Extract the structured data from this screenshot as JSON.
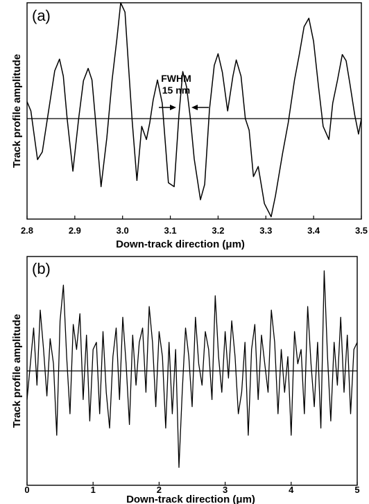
{
  "chart_data": [
    {
      "type": "line",
      "panel_label": "(a)",
      "xlabel": "Down-track direction (μm)",
      "ylabel": "Track profile amplitude",
      "xlim": [
        2.8,
        3.5
      ],
      "ylim": [
        -1.3,
        1.5
      ],
      "x_ticks": [
        "2.8",
        "2.9",
        "3.0",
        "3.1",
        "3.2",
        "3.3",
        "3.4",
        "3.5"
      ],
      "baseline": 0,
      "annotations": [
        {
          "text": "FWHM",
          "x": 3.125,
          "y": 0.0
        },
        {
          "text": "15 nm",
          "x": 3.125,
          "y": 0.0
        }
      ],
      "series": [
        {
          "x": [
            2.8,
            2.808,
            2.822,
            2.832,
            2.847,
            2.858,
            2.868,
            2.876,
            2.884,
            2.896,
            2.908,
            2.918,
            2.928,
            2.936,
            2.943,
            2.955,
            2.967,
            2.978,
            2.988,
            2.996,
            3.005,
            3.012,
            3.02,
            3.03,
            3.04,
            3.05,
            3.057,
            3.064,
            3.073,
            3.083,
            3.096,
            3.108,
            3.118,
            3.126,
            3.134,
            3.142,
            3.15,
            3.163,
            3.172,
            3.182,
            3.192,
            3.2,
            3.209,
            3.22,
            3.231,
            3.238,
            3.248,
            3.257,
            3.265,
            3.274,
            3.284,
            3.297,
            3.311,
            3.32,
            3.335,
            3.347,
            3.36,
            3.37,
            3.38,
            3.39,
            3.4,
            3.41,
            3.42,
            3.432,
            3.44,
            3.45,
            3.46,
            3.468,
            3.476,
            3.486,
            3.494,
            3.5
          ],
          "y": [
            0.22,
            0.1,
            -0.53,
            -0.43,
            0.18,
            0.62,
            0.77,
            0.55,
            0.0,
            -0.68,
            0.0,
            0.49,
            0.65,
            0.5,
            0.0,
            -0.88,
            -0.25,
            0.5,
            1.03,
            1.5,
            1.38,
            0.72,
            -0.02,
            -0.8,
            -0.1,
            -0.27,
            -0.05,
            0.24,
            0.5,
            0.2,
            -0.83,
            -0.88,
            0.05,
            0.61,
            0.41,
            0.0,
            -0.52,
            -1.05,
            -0.85,
            0.12,
            0.69,
            0.84,
            0.6,
            0.1,
            0.55,
            0.76,
            0.55,
            0.0,
            -0.15,
            -0.75,
            -0.62,
            -1.1,
            -1.27,
            -1.0,
            -0.45,
            -0.05,
            0.5,
            0.83,
            1.19,
            1.3,
            1.0,
            0.43,
            -0.1,
            -0.27,
            0.2,
            0.5,
            0.83,
            0.75,
            0.45,
            0.05,
            -0.2,
            0.0
          ]
        }
      ]
    },
    {
      "type": "line",
      "panel_label": "(b)",
      "xlabel": "Down-track direction (μm)",
      "ylabel": "Track profile amplitude",
      "xlim": [
        0,
        5
      ],
      "ylim": [
        -1.6,
        1.6
      ],
      "x_ticks": [
        "0",
        "1",
        "2",
        "3",
        "4",
        "5"
      ],
      "baseline": 0,
      "series": [
        {
          "x": [
            0.0,
            0.05,
            0.1,
            0.15,
            0.2,
            0.25,
            0.3,
            0.35,
            0.4,
            0.45,
            0.5,
            0.55,
            0.6,
            0.65,
            0.7,
            0.75,
            0.8,
            0.85,
            0.9,
            0.95,
            1.0,
            1.05,
            1.1,
            1.15,
            1.2,
            1.25,
            1.3,
            1.35,
            1.4,
            1.45,
            1.5,
            1.55,
            1.6,
            1.65,
            1.7,
            1.75,
            1.8,
            1.85,
            1.9,
            1.95,
            2.0,
            2.05,
            2.1,
            2.15,
            2.2,
            2.25,
            2.3,
            2.35,
            2.4,
            2.45,
            2.5,
            2.55,
            2.6,
            2.65,
            2.7,
            2.75,
            2.8,
            2.85,
            2.9,
            2.95,
            3.0,
            3.05,
            3.1,
            3.15,
            3.2,
            3.25,
            3.3,
            3.35,
            3.4,
            3.45,
            3.5,
            3.55,
            3.6,
            3.65,
            3.7,
            3.75,
            3.8,
            3.85,
            3.9,
            3.95,
            4.0,
            4.05,
            4.1,
            4.15,
            4.2,
            4.25,
            4.3,
            4.35,
            4.4,
            4.45,
            4.5,
            4.55,
            4.6,
            4.65,
            4.7,
            4.75,
            4.8,
            4.85,
            4.9,
            4.95,
            5.0
          ],
          "y": [
            -0.4,
            0.1,
            0.6,
            -0.2,
            0.85,
            0.3,
            -0.35,
            0.45,
            0.1,
            -0.9,
            0.7,
            1.2,
            0.2,
            -0.6,
            0.65,
            0.3,
            0.8,
            -0.4,
            0.5,
            -0.7,
            0.3,
            0.4,
            -0.6,
            0.55,
            -0.3,
            -0.8,
            0.2,
            0.6,
            -0.4,
            0.75,
            0.1,
            -0.75,
            0.5,
            -0.2,
            0.4,
            0.6,
            -0.3,
            0.9,
            0.4,
            -0.5,
            0.55,
            0.2,
            -0.8,
            0.4,
            -0.6,
            0.3,
            -1.35,
            -0.3,
            0.6,
            0.2,
            -0.5,
            0.75,
            0.1,
            -0.2,
            0.55,
            0.3,
            -0.4,
            1.05,
            0.2,
            -0.3,
            0.55,
            -0.1,
            0.7,
            0.2,
            -0.6,
            -0.3,
            0.4,
            -0.9,
            0.3,
            0.65,
            -0.4,
            0.5,
            0.1,
            -0.3,
            0.85,
            0.4,
            -0.6,
            0.3,
            -0.3,
            0.2,
            -0.9,
            0.55,
            0.1,
            0.3,
            -0.6,
            0.9,
            0.1,
            -0.5,
            0.4,
            -0.8,
            1.4,
            0.2,
            -0.7,
            0.4,
            -0.2,
            0.75,
            -0.3,
            0.5,
            -0.6,
            0.3,
            0.4
          ]
        }
      ]
    }
  ]
}
